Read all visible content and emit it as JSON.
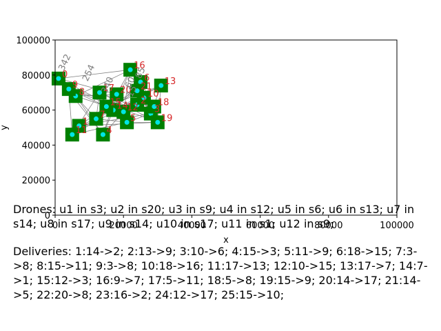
{
  "chart_data": {
    "type": "scatter",
    "title": "",
    "xlabel": "x",
    "ylabel": "y",
    "xlim": [
      0,
      100000
    ],
    "ylim": [
      0,
      100000
    ],
    "x_ticks": [
      "0",
      "20000",
      "40000",
      "60000",
      "80000",
      "100000"
    ],
    "y_ticks": [
      "0",
      "20000",
      "40000",
      "60000",
      "80000",
      "100000"
    ],
    "grid": false,
    "stations": [
      {
        "label": "s0",
        "x": 1000,
        "y": 78000
      },
      {
        "label": "s1",
        "x": 7000,
        "y": 51000
      },
      {
        "label": "s2",
        "x": 24000,
        "y": 63000
      },
      {
        "label": "s3",
        "x": 28000,
        "y": 58000
      },
      {
        "label": "s4",
        "x": 14000,
        "y": 46000
      },
      {
        "label": "s5",
        "x": 21000,
        "y": 53000
      },
      {
        "label": "s6",
        "x": 25000,
        "y": 76000
      },
      {
        "label": "s7",
        "x": 12000,
        "y": 55000
      },
      {
        "label": "s8",
        "x": 6000,
        "y": 68000
      },
      {
        "label": "s9",
        "x": 4000,
        "y": 72000
      },
      {
        "label": "s10",
        "x": 26000,
        "y": 67000
      },
      {
        "label": "s11",
        "x": 5000,
        "y": 46000
      },
      {
        "label": "s12",
        "x": 20000,
        "y": 59000
      },
      {
        "label": "s13",
        "x": 31000,
        "y": 74000
      },
      {
        "label": "s14",
        "x": 17000,
        "y": 60000
      },
      {
        "label": "s15",
        "x": 15000,
        "y": 62000
      },
      {
        "label": "s16",
        "x": 22000,
        "y": 83000
      },
      {
        "label": "s17",
        "x": 13000,
        "y": 70000
      },
      {
        "label": "s18",
        "x": 29000,
        "y": 62000
      },
      {
        "label": "s19",
        "x": 30000,
        "y": 53000
      },
      {
        "label": "s20",
        "x": 18000,
        "y": 69000
      },
      {
        "label": "s21",
        "x": 24000,
        "y": 71000
      }
    ],
    "station_labels": [
      "0",
      "1",
      "2",
      "3",
      "4",
      "5",
      "6",
      "7",
      "8",
      "9",
      "10",
      "11",
      "12",
      "13",
      "14",
      "15",
      "16",
      "17",
      "18",
      "19",
      "20",
      "21"
    ],
    "route_labels": [
      "342",
      "15",
      "254",
      "60",
      "85",
      "340"
    ],
    "colors": {
      "station": "#008000",
      "marker": "#00e5e5",
      "label": "#d62728",
      "edge": "#808080"
    }
  },
  "text": {
    "drones": "Drones: u1 in s3; u2 in s20; u3 in s9; u4 in s12; u5 in s6; u6 in s13; u7 in s14; u8 in s17; u9 in s14; u10 in s17; u11 in s1; u12 in s9;",
    "deliveries": "Deliveries: 1:14->2; 2:13->9; 3:10->6; 4:15->3; 5:11->9; 6:18->15; 7:3->8; 8:15->11; 9:3->8; 10:18->16; 11:17->13; 12:10->15; 13:17->7; 14:7->1; 15:12->3; 16:9->7; 17:5->11; 18:5->8; 19:15->9; 20:14->17; 21:14->5; 22:20->8; 23:16->2; 24:12->17; 25:15->10;"
  }
}
